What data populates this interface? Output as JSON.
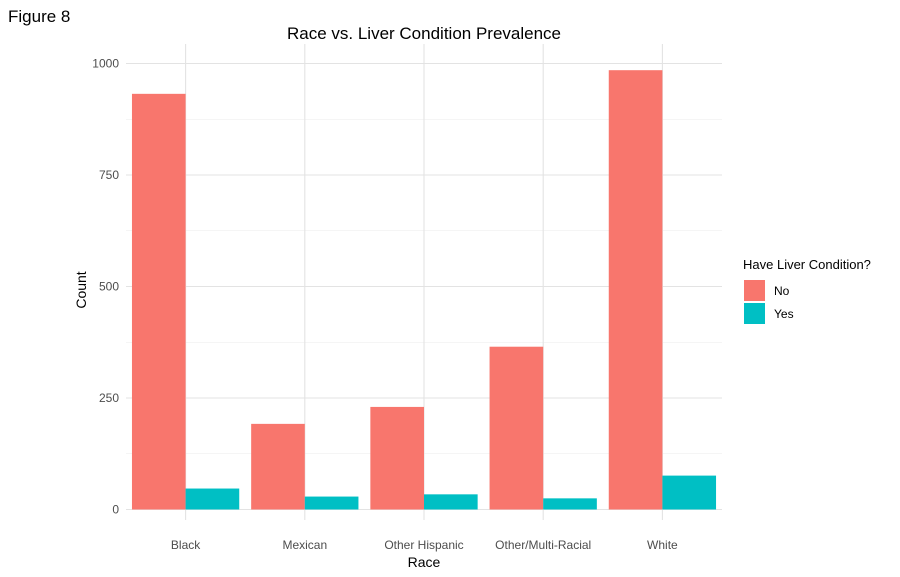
{
  "figure_label": "Figure 8",
  "chart_data": {
    "type": "bar",
    "title": "Race vs. Liver Condition Prevalence",
    "xlabel": "Race",
    "ylabel": "Count",
    "categories": [
      "Black",
      "Mexican",
      "Other Hispanic",
      "Other/Multi-Racial",
      "White"
    ],
    "series": [
      {
        "name": "No",
        "color": "#F8766D",
        "values": [
          932,
          192,
          230,
          365,
          985
        ]
      },
      {
        "name": "Yes",
        "color": "#00BFC4",
        "values": [
          47,
          29,
          34,
          25,
          76
        ]
      }
    ],
    "ylim": [
      0,
      1030
    ],
    "yticks": [
      0,
      250,
      500,
      750,
      1000
    ],
    "grid": true,
    "legend": {
      "title": "Have Liver Condition?",
      "placement": "right"
    }
  }
}
